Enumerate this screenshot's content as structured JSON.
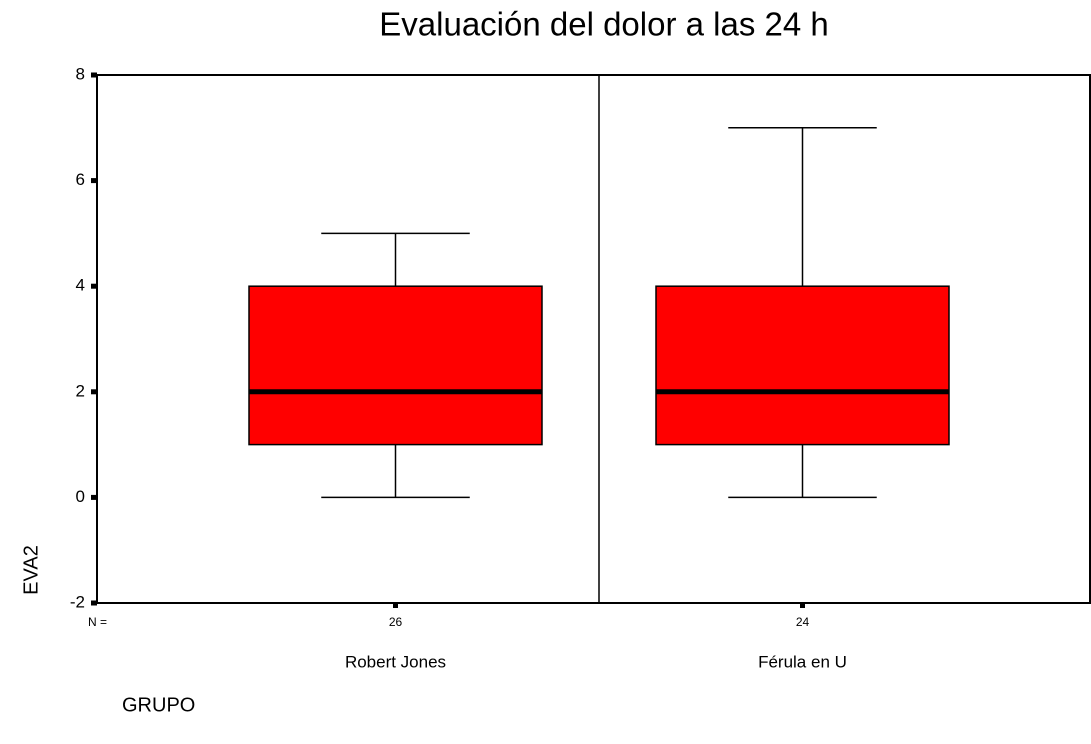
{
  "chart_data": {
    "type": "box",
    "title": "Evaluación del dolor a las 24 h",
    "x_label": "GRUPO",
    "y_label": "EVA2",
    "categories": [
      "Robert Jones",
      "Férula en U"
    ],
    "boxes": [
      {
        "min": 0,
        "q1": 1,
        "median": 2,
        "q3": 4,
        "max": 5
      },
      {
        "min": 0,
        "q1": 1,
        "median": 2,
        "q3": 4,
        "max": 7
      }
    ],
    "n_label": "N =",
    "n": [
      26,
      24
    ],
    "color": "#ff0000",
    "ylim": [
      -2,
      8
    ],
    "yticks": [
      -2,
      0,
      2,
      4,
      6,
      8
    ]
  }
}
